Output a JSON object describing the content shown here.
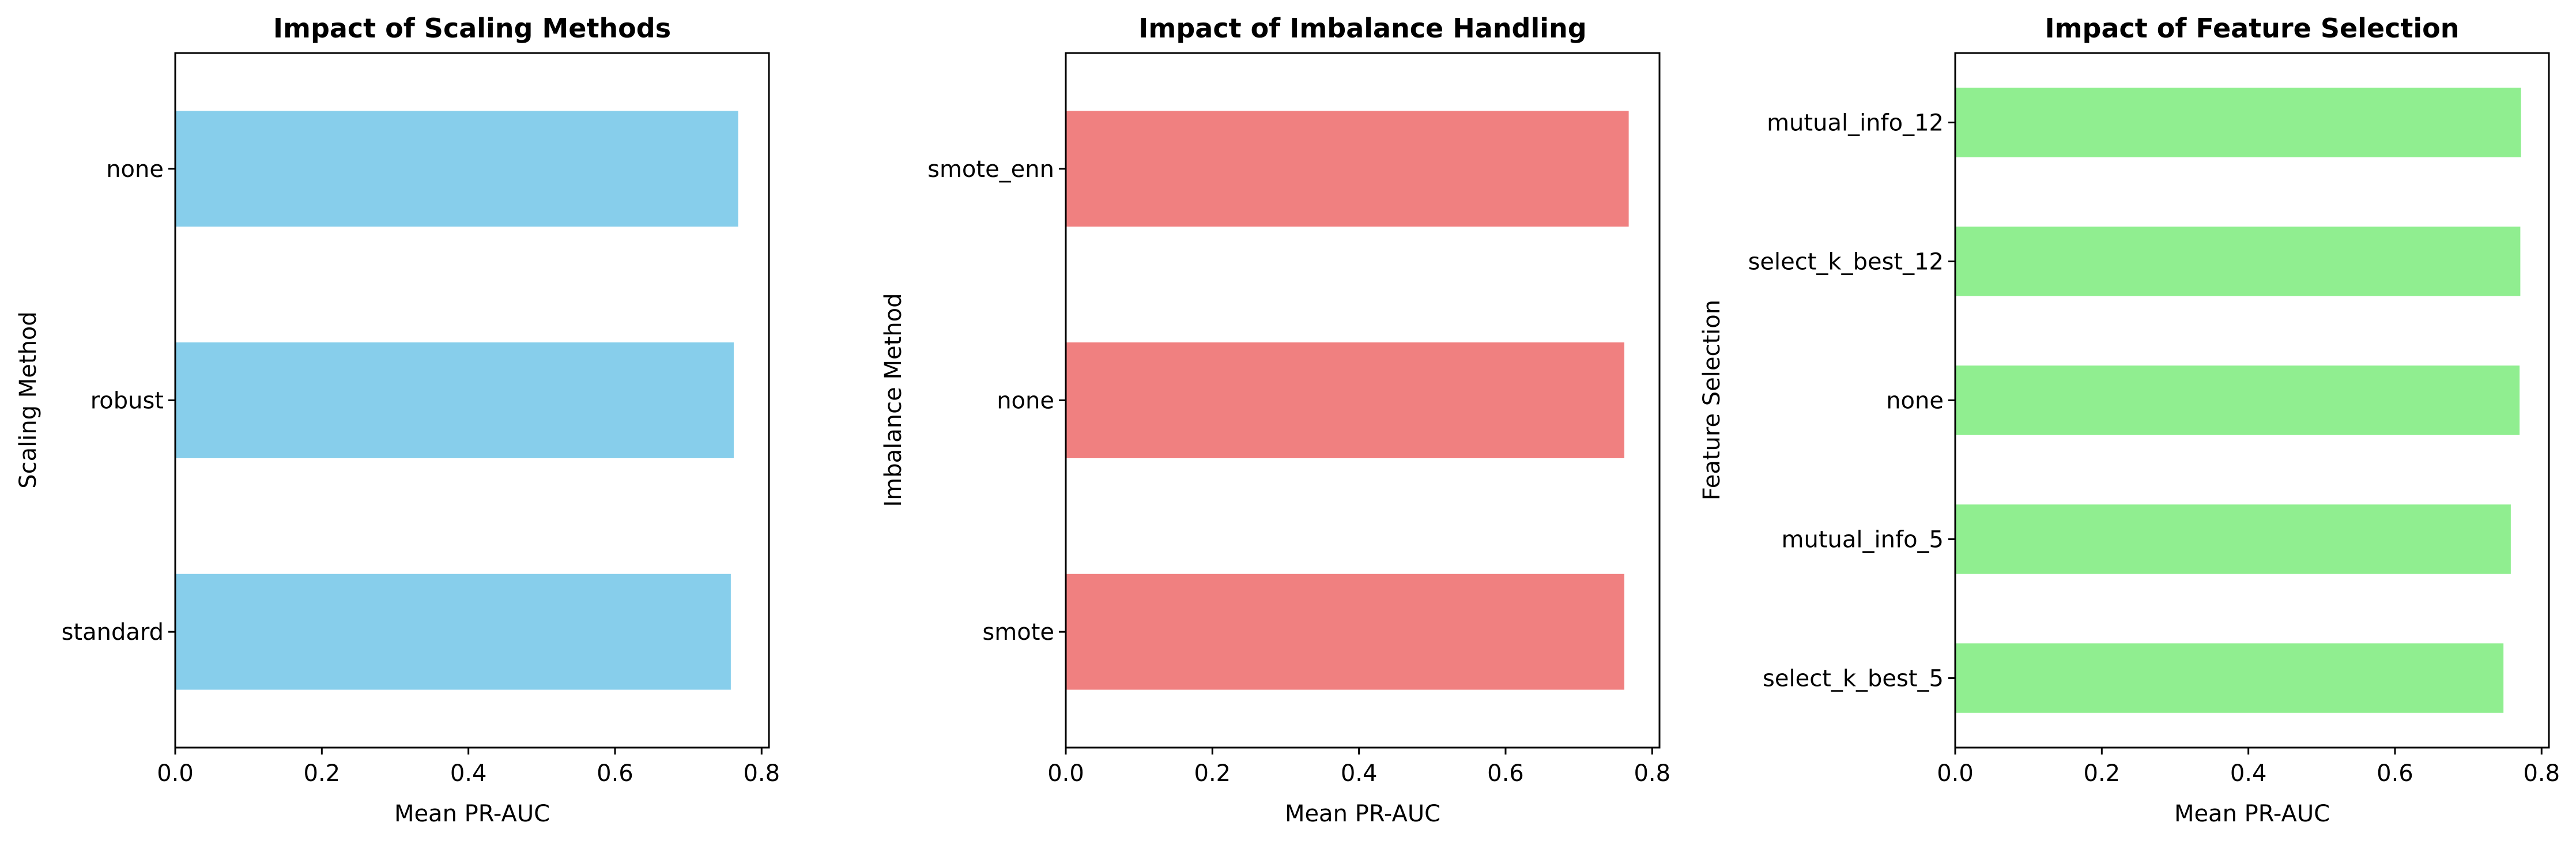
{
  "chart_data": [
    {
      "type": "bar",
      "orientation": "horizontal",
      "title": "Impact of Scaling Methods",
      "xlabel": "Mean PR-AUC",
      "ylabel": "Scaling Method",
      "categories": [
        "none",
        "robust",
        "standard"
      ],
      "values": [
        0.768,
        0.762,
        0.758
      ],
      "xlim": [
        0,
        0.81
      ],
      "xticks": [
        "0.0",
        "0.2",
        "0.4",
        "0.6",
        "0.8"
      ],
      "color": "#87CEEB",
      "grid": false,
      "legend": "none"
    },
    {
      "type": "bar",
      "orientation": "horizontal",
      "title": "Impact of Imbalance Handling",
      "xlabel": "Mean PR-AUC",
      "ylabel": "Imbalance Method",
      "categories": [
        "smote_enn",
        "none",
        "smote"
      ],
      "values": [
        0.768,
        0.762,
        0.762
      ],
      "xlim": [
        0,
        0.81
      ],
      "xticks": [
        "0.0",
        "0.2",
        "0.4",
        "0.6",
        "0.8"
      ],
      "color": "#F08080",
      "grid": false,
      "legend": "none"
    },
    {
      "type": "bar",
      "orientation": "horizontal",
      "title": "Impact of Feature Selection",
      "xlabel": "Mean PR-AUC",
      "ylabel": "Feature Selection",
      "categories": [
        "mutual_info_12",
        "select_k_best_12",
        "none",
        "mutual_info_5",
        "select_k_best_5"
      ],
      "values": [
        0.772,
        0.771,
        0.77,
        0.758,
        0.748
      ],
      "xlim": [
        0,
        0.81
      ],
      "xticks": [
        "0.0",
        "0.2",
        "0.4",
        "0.6",
        "0.8"
      ],
      "color": "#90EE90",
      "grid": false,
      "legend": "none"
    }
  ]
}
